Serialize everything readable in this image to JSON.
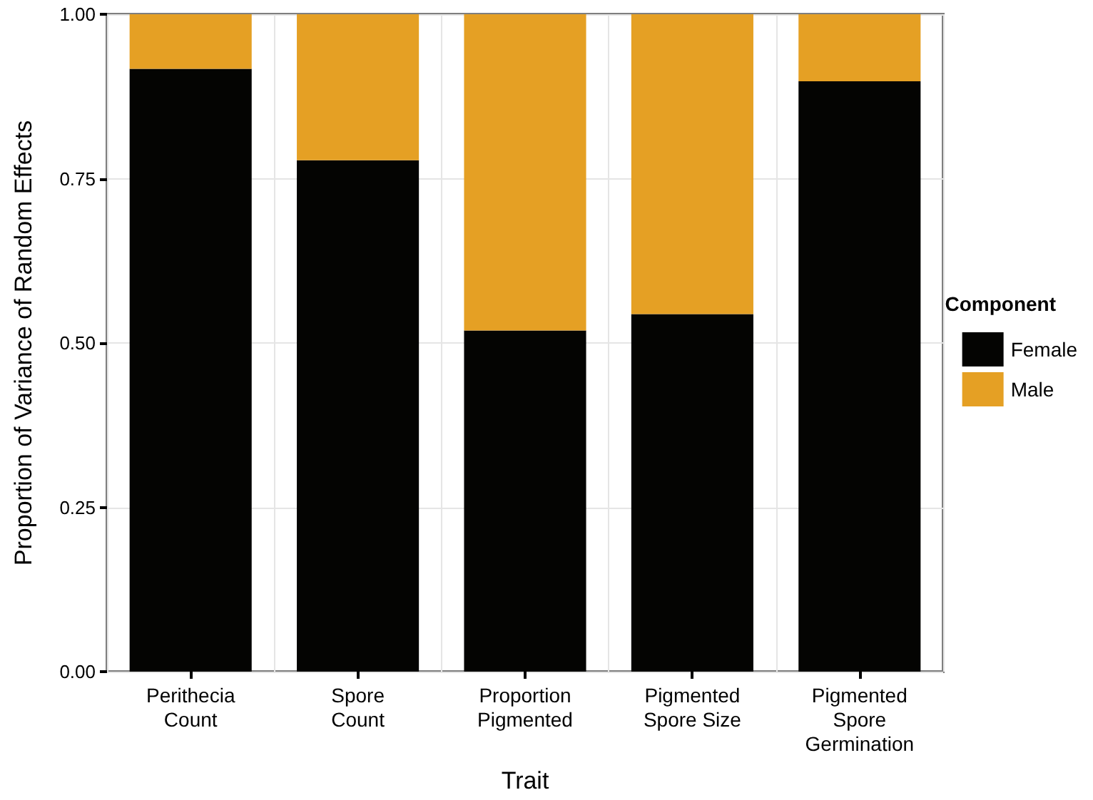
{
  "chart_data": {
    "type": "bar",
    "stacked": true,
    "xlabel": "Trait",
    "ylabel": "Proportion of Variance of Random Effects",
    "legend_title": "Component",
    "legend": "right",
    "categories": [
      "Perithecia\nCount",
      "Spore\nCount",
      "Proportion\nPigmented",
      "Pigmented\nSpore Size",
      "Pigmented\nSpore\nGermination"
    ],
    "series": [
      {
        "name": "Female",
        "color": "#040402",
        "values": [
          0.917,
          0.778,
          0.519,
          0.544,
          0.898
        ]
      },
      {
        "name": "Male",
        "color": "#e5a024",
        "values": [
          0.083,
          0.222,
          0.481,
          0.456,
          0.102
        ]
      }
    ],
    "ylim": [
      0,
      1
    ],
    "yticks": [
      {
        "value": 0,
        "label": "0.00"
      },
      {
        "value": 0.25,
        "label": "0.25"
      },
      {
        "value": 0.5,
        "label": "0.50"
      },
      {
        "value": 0.75,
        "label": "0.75"
      },
      {
        "value": 1,
        "label": "1.00"
      }
    ],
    "grid": true
  }
}
